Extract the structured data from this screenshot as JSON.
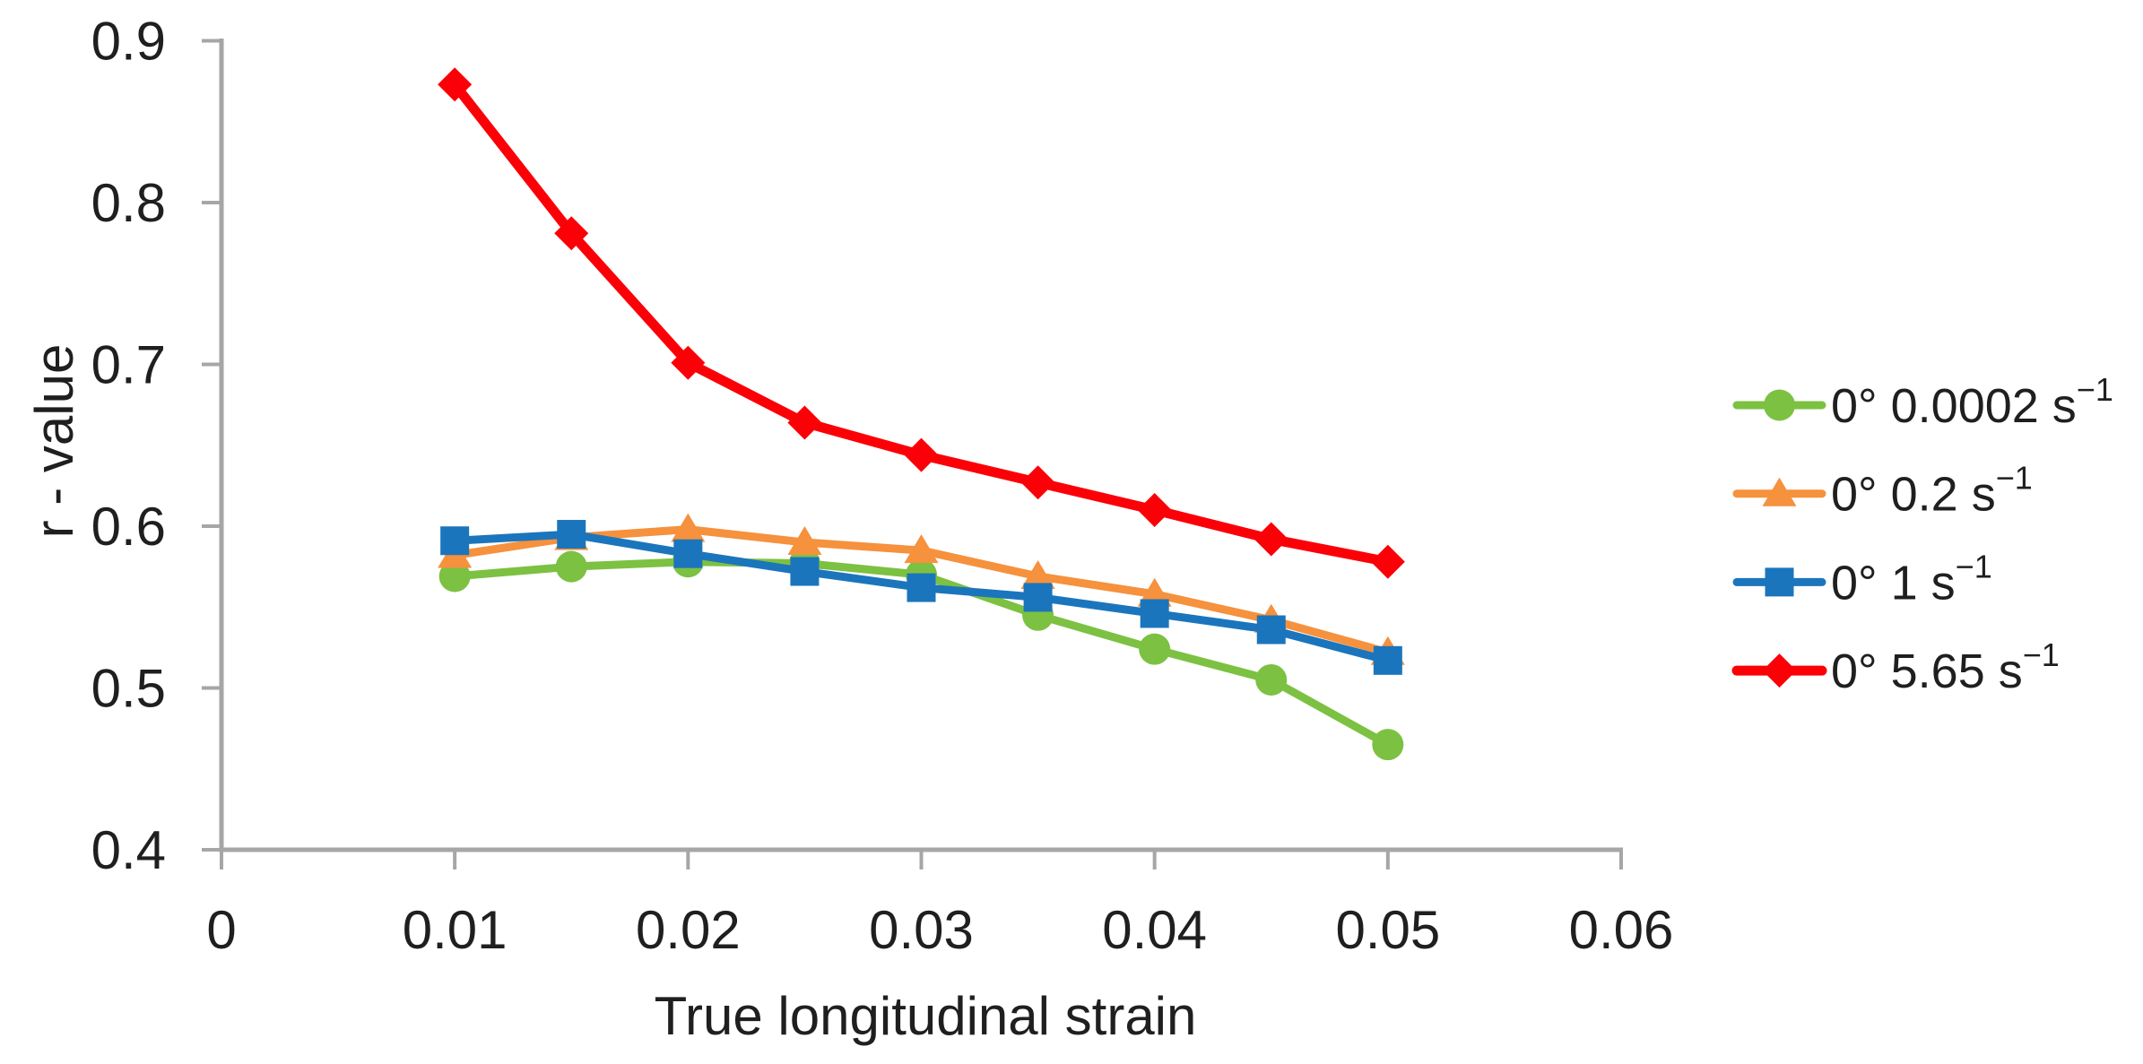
{
  "chart_data": {
    "type": "line",
    "title": "",
    "xlabel": "True longitudinal strain",
    "ylabel": "r - value",
    "xlim": [
      0,
      0.06
    ],
    "ylim": [
      0.4,
      0.9
    ],
    "grid": false,
    "legend_position": "right",
    "axis_color": "#A6A6A6",
    "text_color": "#1F1F1F",
    "x_ticks": {
      "values": [
        0,
        0.01,
        0.02,
        0.03,
        0.04,
        0.05,
        0.06
      ],
      "labels": [
        "0",
        "0.01",
        "0.02",
        "0.03",
        "0.04",
        "0.05",
        "0.06"
      ]
    },
    "y_ticks": {
      "values": [
        0.4,
        0.5,
        0.6,
        0.7,
        0.8,
        0.9
      ],
      "labels": [
        "0.4",
        "0.5",
        "0.6",
        "0.7",
        "0.8",
        "0.9"
      ]
    },
    "x": [
      0.01,
      0.015,
      0.02,
      0.025,
      0.03,
      0.035,
      0.04,
      0.045,
      0.05
    ],
    "series": [
      {
        "name_base": "0° 0.0002 s",
        "name_exp": "−1",
        "marker": "circle",
        "color": "#7CC142",
        "values": [
          0.569,
          0.575,
          0.578,
          0.577,
          0.57,
          0.545,
          0.524,
          0.505,
          0.465
        ]
      },
      {
        "name_base": "0° 0.2 s",
        "name_exp": "−1",
        "marker": "triangle",
        "color": "#F6913D",
        "values": [
          0.582,
          0.593,
          0.598,
          0.59,
          0.585,
          0.569,
          0.558,
          0.542,
          0.522
        ]
      },
      {
        "name_base": "0° 1 s",
        "name_exp": "−1",
        "marker": "square",
        "color": "#1B75BC",
        "values": [
          0.591,
          0.595,
          0.583,
          0.572,
          0.562,
          0.556,
          0.546,
          0.536,
          0.517
        ]
      },
      {
        "name_base": "0° 5.65 s",
        "name_exp": "−1",
        "marker": "diamond",
        "color": "#FB0007",
        "values": [
          0.873,
          0.781,
          0.701,
          0.664,
          0.644,
          0.627,
          0.61,
          0.592,
          0.578
        ]
      }
    ]
  }
}
